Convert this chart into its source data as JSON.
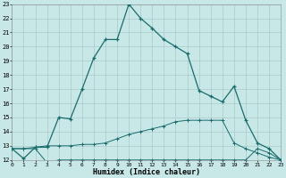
{
  "xlabel": "Humidex (Indice chaleur)",
  "background_color": "#c8e8e8",
  "grid_color": "#aacaca",
  "line_color": "#1a6b6b",
  "x_min": 0,
  "x_max": 23,
  "y_min": 12,
  "y_max": 23,
  "line1_x": [
    0,
    1,
    2,
    3,
    4,
    5,
    6,
    7,
    8,
    9,
    10,
    11,
    12,
    13,
    14,
    15,
    16,
    17,
    18,
    19,
    20,
    21,
    22,
    23
  ],
  "line1_y": [
    12.8,
    12.1,
    12.9,
    12.9,
    15.0,
    14.9,
    17.0,
    19.2,
    20.5,
    20.5,
    23.0,
    22.0,
    21.3,
    20.5,
    20.0,
    19.5,
    16.9,
    16.5,
    16.1,
    17.2,
    14.8,
    13.2,
    12.8,
    12.0
  ],
  "line2_x": [
    0,
    1,
    2,
    3,
    4,
    5,
    6,
    7,
    8,
    9,
    10,
    11,
    12,
    13,
    14,
    15,
    16,
    17,
    18,
    19,
    20,
    21,
    22,
    23
  ],
  "line2_y": [
    12.8,
    12.8,
    12.9,
    13.0,
    13.0,
    13.0,
    13.1,
    13.1,
    13.2,
    13.5,
    13.8,
    14.0,
    14.2,
    14.4,
    14.7,
    14.8,
    14.8,
    14.8,
    14.8,
    13.2,
    12.8,
    12.5,
    12.2,
    12.0
  ],
  "line3_x": [
    0,
    1,
    2,
    3,
    4,
    5,
    6,
    7,
    8,
    9,
    10,
    11,
    12,
    13,
    14,
    15,
    16,
    17,
    18,
    19,
    20,
    21,
    22,
    23
  ],
  "line3_y": [
    12.8,
    12.8,
    12.8,
    11.8,
    12.0,
    12.0,
    12.0,
    12.0,
    12.0,
    12.0,
    12.0,
    12.0,
    12.0,
    12.0,
    12.0,
    12.0,
    12.0,
    12.0,
    12.0,
    12.0,
    12.0,
    12.8,
    12.5,
    12.0
  ]
}
